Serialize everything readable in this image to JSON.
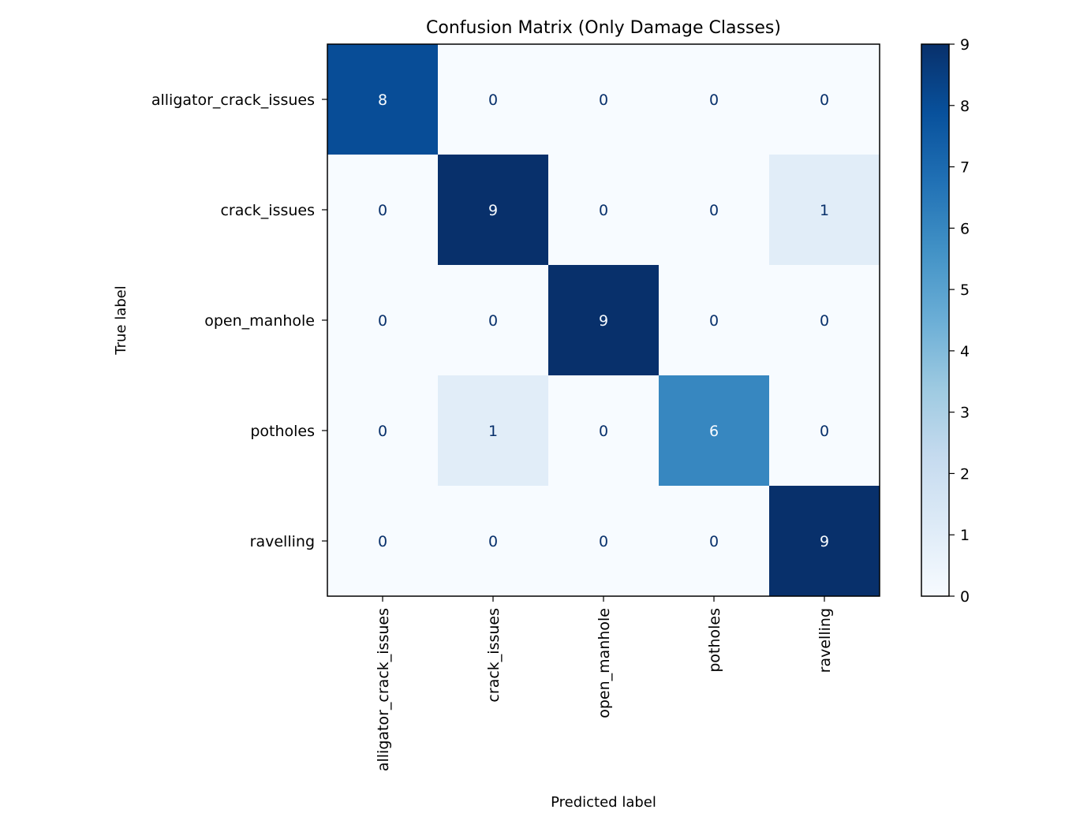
{
  "chart_data": {
    "type": "heatmap",
    "title": "Confusion Matrix (Only Damage Classes)",
    "xlabel": "Predicted label",
    "ylabel": "True label",
    "x_categories": [
      "alligator_crack_issues",
      "crack_issues",
      "open_manhole",
      "potholes",
      "ravelling"
    ],
    "y_categories": [
      "alligator_crack_issues",
      "crack_issues",
      "open_manhole",
      "potholes",
      "ravelling"
    ],
    "values": [
      [
        8,
        0,
        0,
        0,
        0
      ],
      [
        0,
        9,
        0,
        0,
        1
      ],
      [
        0,
        0,
        9,
        0,
        0
      ],
      [
        0,
        1,
        0,
        6,
        0
      ],
      [
        0,
        0,
        0,
        0,
        9
      ]
    ],
    "colormap": "Blues",
    "colorbar": {
      "range": [
        0,
        9
      ],
      "ticks": [
        "0",
        "1",
        "2",
        "3",
        "4",
        "5",
        "6",
        "7",
        "8",
        "9"
      ]
    },
    "grid": false
  }
}
